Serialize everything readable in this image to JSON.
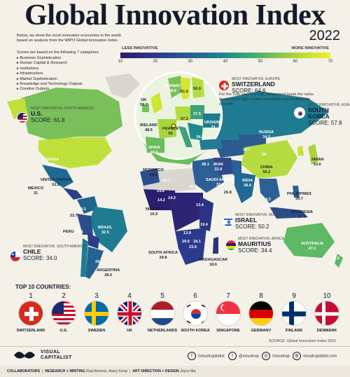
{
  "title": "Global Innovation Index",
  "year": "2022",
  "intro": "Below, we show the most innovative economies in the world, based on analysis from the WIPO Global Innovation Index.",
  "scores_title": "Scores are based on the following 7 categories:",
  "categories": [
    "Business Sophistication",
    "Human Capital & Research",
    "Institutions",
    "Infrastructure",
    "Market Sophistication",
    "Knowledge and Technology Outputs",
    "Creative Outputs"
  ],
  "legend": {
    "less_label": "LESS INNOVATIVE",
    "more_label": "MORE INNOVATIVE",
    "ticks": [
      "10",
      "20",
      "30",
      "40",
      "50",
      "60",
      "70"
    ],
    "colors": [
      "#2b1b6b",
      "#2e3a8c",
      "#245f95",
      "#1d8a8c",
      "#4fb26b",
      "#a9d43d",
      "#f3ef2b"
    ]
  },
  "callouts": {
    "europe": {
      "cat": "MOST INNOVATIVE: EUROPE",
      "country": "SWITZERLAND",
      "score": "SCORE: 64.6",
      "note": "For the 12th year in a row, Switzerland leads the ranks thanks to its high number of patents and institutional strength."
    },
    "north_america": {
      "cat": "MOST INNOVATIVE: NORTH AMERICA",
      "country": "U.S.",
      "score": "SCORE: 61.8"
    },
    "asia": {
      "cat": "MOST INNOVATIVE: ASIA",
      "country": "SOUTH KOREA",
      "score": "SCORE: 57.8"
    },
    "middle_east": {
      "cat": "MOST INNOVATIVE: MIDDLE EAST",
      "country": "ISRAEL",
      "score": "SCORE: 50.2"
    },
    "africa": {
      "cat": "MOST INNOVATIVE: AFRICA",
      "country": "MAURITIUS",
      "score": "SCORE: 34.4"
    },
    "south_america": {
      "cat": "MOST INNOVATIVE: SOUTH AMERICA",
      "country": "CHILE",
      "score": "SCORE: 34.0"
    }
  },
  "map_labels": {
    "canada": {
      "name": "CANADA",
      "val": "50.8"
    },
    "us": {
      "name": "UNITED STATES",
      "val": "61.8"
    },
    "mexico": {
      "name": "MEXICO",
      "val": "31"
    },
    "brazil": {
      "name": "BRAZIL",
      "val": "32.5"
    },
    "peru": {
      "name": "PERU",
      "val": "29.1"
    },
    "argentina": {
      "name": "ARGENTINA",
      "val": "28.6"
    },
    "uk": {
      "name": "UK",
      "val": "59.7"
    },
    "ireland": {
      "name": "IRELAND",
      "val": "48.5"
    },
    "france": {
      "name": "FRANCE",
      "val": "55"
    },
    "spain": {
      "name": "SPAIN",
      "val": "44.6"
    },
    "norway": {
      "name": "NORWAY",
      "val": "48.8"
    },
    "ukraine": {
      "name": "UKRAINE",
      "val": "31"
    },
    "russia": {
      "name": "RUSSIA",
      "val": "34.3"
    },
    "china": {
      "name": "CHINA",
      "val": "55.3"
    },
    "japan": {
      "name": "JAPAN",
      "val": "53.6"
    },
    "india": {
      "name": "INDIA",
      "val": "36.6"
    },
    "iran": {
      "name": "IRAN",
      "val": "32.9"
    },
    "saudi": {
      "name": "SAUDI ARABIA",
      "val": "33.4"
    },
    "morocco": {
      "name": "MOROCCO",
      "val": "28.8"
    },
    "nigeria": {
      "name": "NIGERIA",
      "val": "16.9"
    },
    "south_africa": {
      "name": "SOUTH AFRICA",
      "val": "29.8"
    },
    "madagascar": {
      "name": "MADAGASCAR",
      "val": "18.6"
    },
    "philippines": {
      "name": "PHILIPPINES",
      "val": "30.7"
    },
    "indonesia": {
      "name": "INDONESIA",
      "val": "27.9"
    },
    "australia": {
      "name": "AUSTRALIA",
      "val": "47.1"
    },
    "nz": {
      "val": "47.2"
    },
    "kazakh": {
      "val": "28"
    },
    "mongolia": {
      "val": "24.7"
    },
    "pak": {
      "val": "26.8"
    },
    "turkey": {
      "val": "38.1"
    },
    "sea1": {
      "val": "34.3"
    },
    "sea2": {
      "val": "38.7"
    },
    "sea3": {
      "val": "16.4"
    },
    "poland": {
      "val": "34.5"
    },
    "germany": {
      "val": "57.2"
    },
    "sweden": {
      "val": "61.6"
    },
    "finland": {
      "val": "56.9"
    },
    "baltic": {
      "val": "37.5"
    },
    "czech": {
      "val": "34.1"
    },
    "africa_vals": [
      "16.7",
      "14.6",
      "14.2",
      "14.2",
      "13.9",
      "20.6",
      "18.1",
      "23.9",
      "19.4",
      "22.7",
      "29.2",
      "29.2",
      "16.3",
      "13.4"
    ]
  },
  "top10_title": "TOP 10 COUNTRIES:",
  "top10": [
    {
      "rank": "1",
      "name": "SWITZERLAND"
    },
    {
      "rank": "2",
      "name": "U.S."
    },
    {
      "rank": "3",
      "name": "SWEDEN"
    },
    {
      "rank": "4",
      "name": "UK"
    },
    {
      "rank": "5",
      "name": "NETHERLANDS"
    },
    {
      "rank": "6",
      "name": "SOUTH KOREA"
    },
    {
      "rank": "7",
      "name": "SINGAPORE"
    },
    {
      "rank": "8",
      "name": "GERMANY"
    },
    {
      "rank": "9",
      "name": "FINLAND"
    },
    {
      "rank": "10",
      "name": "DENMARK"
    }
  ],
  "source": "SOURCE: Global Innovation Index 2022",
  "brand": {
    "line1": "VISUAL",
    "line2": "CAPITALIST"
  },
  "social": [
    "/visualcapitalist",
    "@visualcap",
    "/visualcap",
    "visualcapitalist.com"
  ],
  "credits": {
    "label": "COLLABORATORS",
    "research": "RESEARCH + WRITING",
    "research_names": "Raul Amoros, Avery Koop",
    "art": "ART DIRECTION + DESIGN",
    "art_names": "Joyce Ma"
  }
}
